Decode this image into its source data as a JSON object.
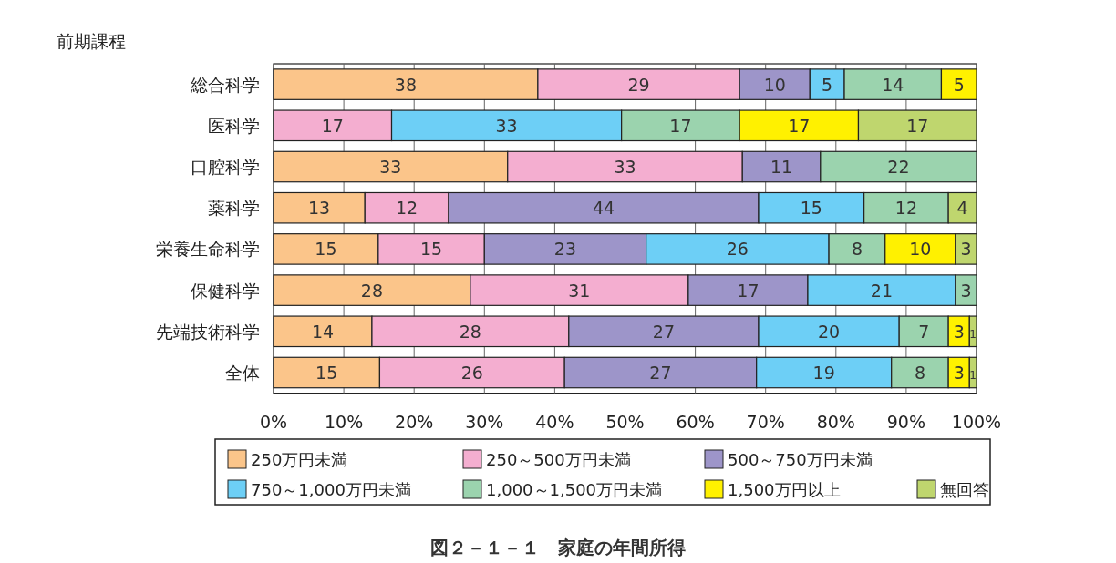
{
  "chart_data": {
    "type": "bar",
    "orientation": "horizontal",
    "stacked": true,
    "title": "図２－１－１　家庭の年間所得",
    "subtitle": "前期課程",
    "categories": [
      "総合科学",
      "医科学",
      "口腔科学",
      "薬科学",
      "栄養生命科学",
      "保健科学",
      "先端技術科学",
      "全体"
    ],
    "xlim": [
      0,
      100
    ],
    "xticks": [
      {
        "value": 0,
        "label": "0%"
      },
      {
        "value": 10,
        "label": "10%"
      },
      {
        "value": 20,
        "label": "20%"
      },
      {
        "value": 30,
        "label": "30%"
      },
      {
        "value": 40,
        "label": "40%"
      },
      {
        "value": 50,
        "label": "50%"
      },
      {
        "value": 60,
        "label": "60%"
      },
      {
        "value": 70,
        "label": "70%"
      },
      {
        "value": 80,
        "label": "80%"
      },
      {
        "value": 90,
        "label": "90%"
      },
      {
        "value": 100,
        "label": "100%"
      }
    ],
    "grid": "x",
    "legend": "bottom",
    "series": [
      {
        "name": "250万円未満",
        "color": "#fbc58a",
        "values": [
          37.6,
          null,
          33.3,
          13.0,
          14.9,
          28.0,
          14.0,
          15.1
        ],
        "value_labels": [
          "38",
          null,
          "33",
          "13",
          "15",
          "28",
          "14",
          "15"
        ]
      },
      {
        "name": "250～500万円未満",
        "color": "#f4aed0",
        "values": [
          28.7,
          16.8,
          33.4,
          11.9,
          15.1,
          31.0,
          28.0,
          26.3
        ],
        "value_labels": [
          "29",
          "17",
          "33",
          "12",
          "15",
          "31",
          "28",
          "26"
        ]
      },
      {
        "name": "500～750万円未満",
        "color": "#9d95c9",
        "values": [
          10.0,
          null,
          11.1,
          44.1,
          23.0,
          17.0,
          27.0,
          27.3
        ],
        "value_labels": [
          "10",
          null,
          "11",
          "44",
          "23",
          "17",
          "27",
          "27"
        ]
      },
      {
        "name": "750～1,000万円未満",
        "color": "#6dcff6",
        "values": [
          4.9,
          32.7,
          null,
          15.0,
          26.0,
          21.0,
          20.0,
          19.2
        ],
        "value_labels": [
          "5",
          "33",
          null,
          "15",
          "26",
          "21",
          "20",
          "19"
        ]
      },
      {
        "name": "1,000～1,500万円未満",
        "color": "#9bd3ae",
        "values": [
          13.8,
          16.8,
          22.2,
          12.0,
          8.0,
          3.0,
          7.0,
          8.1
        ],
        "value_labels": [
          "14",
          "17",
          "22",
          "12",
          "8",
          "3",
          "7",
          "8"
        ]
      },
      {
        "name": "1,500万円以上",
        "color": "#fff100",
        "values": [
          5.0,
          16.9,
          null,
          null,
          10.0,
          null,
          3.0,
          3.0
        ],
        "value_labels": [
          "5",
          "17",
          null,
          null,
          "10",
          null,
          "3",
          "3"
        ]
      },
      {
        "name": "無回答",
        "color": "#bfd66e",
        "values": [
          null,
          16.8,
          null,
          4.0,
          3.0,
          null,
          1.0,
          1.0
        ],
        "value_labels": [
          null,
          "17",
          null,
          "4",
          "3",
          null,
          "1",
          "1"
        ]
      }
    ]
  }
}
